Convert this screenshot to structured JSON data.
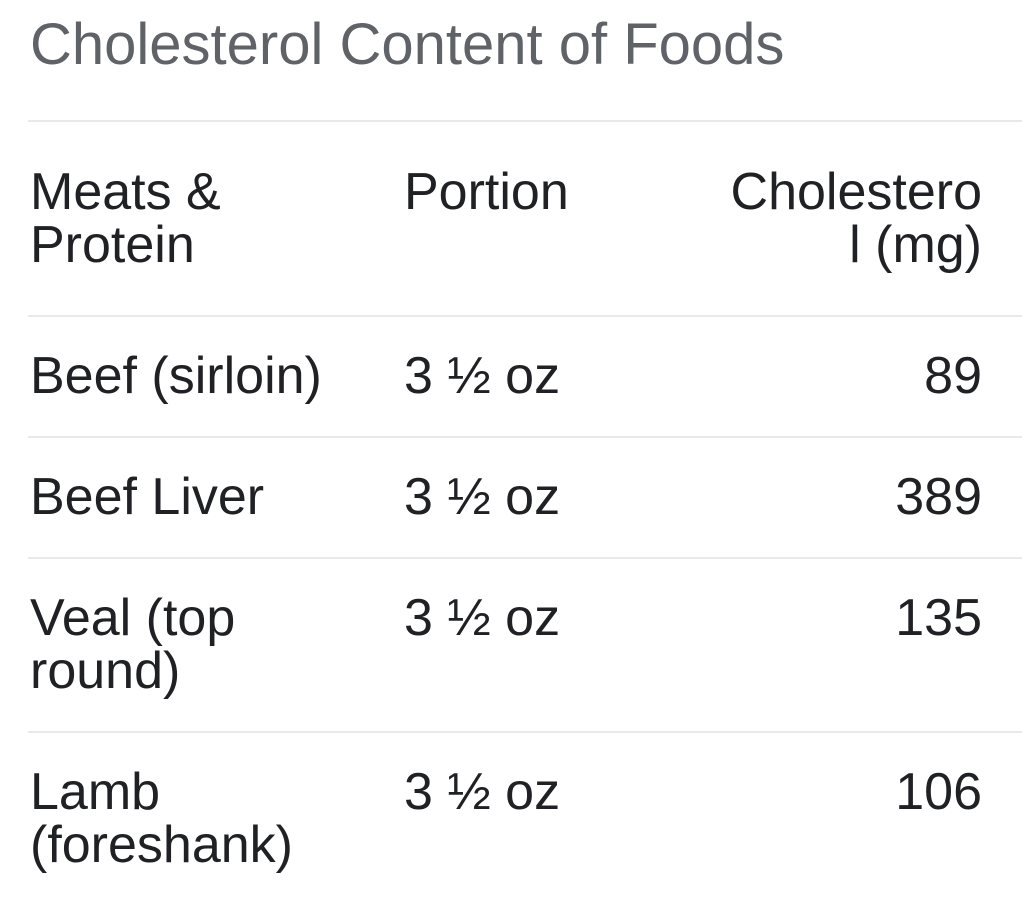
{
  "title": "Cholesterol Content of Foods",
  "colors": {
    "background": "#ffffff",
    "title_text": "#5f6368",
    "body_text": "#202124",
    "divider": "#e7e9ec"
  },
  "table": {
    "columns": [
      {
        "label": "Meats & Protein",
        "align": "left"
      },
      {
        "label": "Portion",
        "align": "left"
      },
      {
        "label": "Cholesterol (mg)",
        "align": "right"
      }
    ],
    "rows": [
      {
        "food": "Beef (sirloin)",
        "portion": "3 ½ oz",
        "cholesterol_mg": "89"
      },
      {
        "food": "Beef Liver",
        "portion": "3 ½ oz",
        "cholesterol_mg": "389"
      },
      {
        "food": "Veal (top round)",
        "portion": "3 ½ oz",
        "cholesterol_mg": "135"
      },
      {
        "food": "Lamb (foreshank)",
        "portion": "3 ½ oz",
        "cholesterol_mg": "106"
      }
    ]
  },
  "chart_data": {
    "type": "table",
    "title": "Cholesterol Content of Foods",
    "columns": [
      "Meats & Protein",
      "Portion",
      "Cholesterol (mg)"
    ],
    "rows": [
      [
        "Beef (sirloin)",
        "3 ½ oz",
        89
      ],
      [
        "Beef Liver",
        "3 ½ oz",
        389
      ],
      [
        "Veal (top round)",
        "3 ½ oz",
        135
      ],
      [
        "Lamb (foreshank)",
        "3 ½ oz",
        106
      ]
    ]
  }
}
